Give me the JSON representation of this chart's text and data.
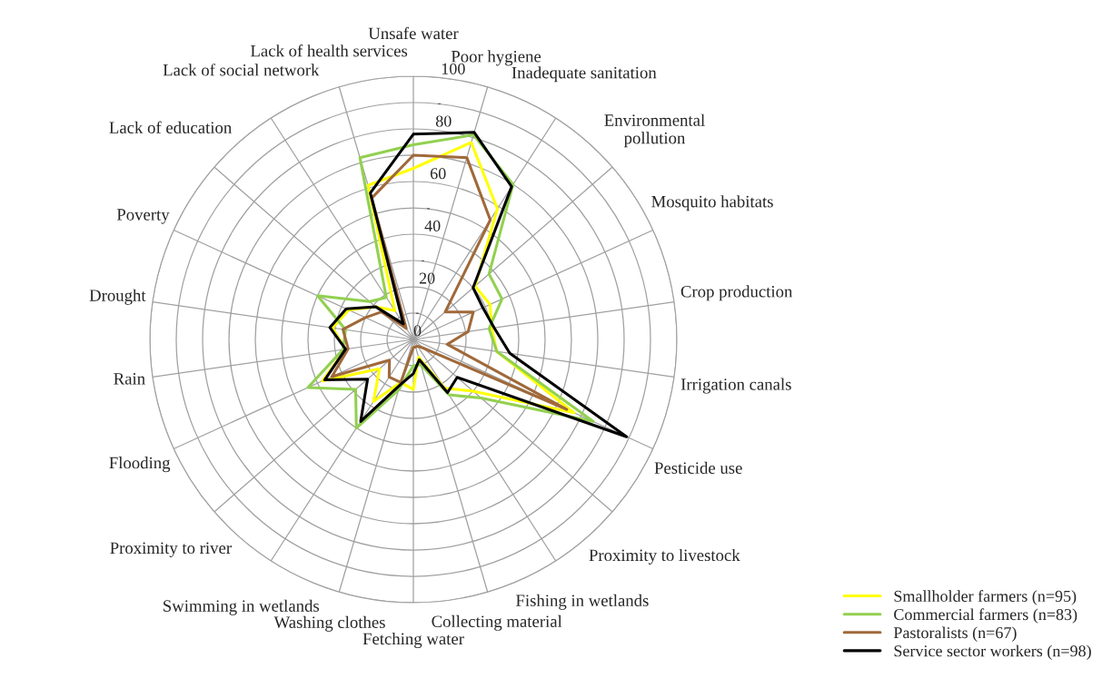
{
  "chart_data": {
    "type": "radar",
    "categories": [
      "Unsafe water",
      "Poor hygiene",
      "Inadequate sanitation",
      "Environmental\npollution",
      "Mosquito habitats",
      "Crop production",
      "Irrigation canals",
      "Pesticide use",
      "Proximity to livestock",
      "Fishing in wetlands",
      "Collecting material",
      "Fetching water",
      "Washing clothes",
      "Swimming in wetlands",
      "Proximity to river",
      "Flooding",
      "Rain",
      "Drought",
      "Poverty",
      "Lack of education",
      "Lack of social network",
      "Lack of health services"
    ],
    "series": [
      {
        "name": "Smallholder farmers (n=95)",
        "color": "#ffff00",
        "values": [
          65,
          78,
          59,
          31,
          32,
          30,
          32,
          67,
          30,
          22,
          7,
          19,
          17,
          28,
          17,
          38,
          26,
          31,
          27,
          19,
          13,
          61
        ]
      },
      {
        "name": "Commercial farmers (n=83)",
        "color": "#92d050",
        "values": [
          74,
          81,
          70,
          38,
          37,
          29,
          32,
          75,
          34,
          25,
          10,
          10,
          20,
          40,
          29,
          44,
          27,
          26,
          40,
          22,
          19,
          72
        ]
      },
      {
        "name": "Pastoralists (n=67)",
        "color": "#a0693a",
        "values": [
          70,
          72,
          54,
          16,
          25,
          21,
          13,
          64,
          5,
          3,
          3,
          3,
          17,
          17,
          12,
          34,
          25,
          27,
          20,
          16,
          5,
          56
        ]
      },
      {
        "name": "Service sector workers (n=98)",
        "color": "#000000",
        "values": [
          78,
          82,
          69,
          30,
          29,
          31,
          37,
          89,
          22,
          24,
          8,
          13,
          18,
          37,
          23,
          37,
          26,
          32,
          28,
          19,
          7,
          58
        ]
      }
    ],
    "ylim": [
      0,
      100
    ],
    "yticks": [
      0,
      20,
      40,
      60,
      80,
      100
    ],
    "grid": true,
    "legend": "bottom right",
    "marker": "none",
    "line_style": "solid"
  }
}
